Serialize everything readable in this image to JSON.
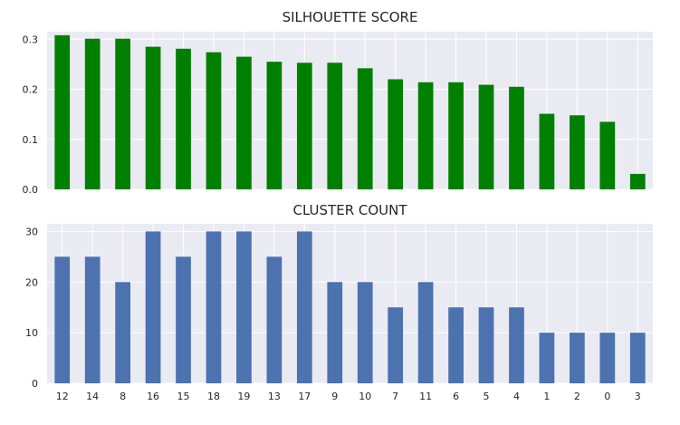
{
  "chart_data": [
    {
      "type": "bar",
      "title": "SILHOUETTE SCORE",
      "categories": [
        "12",
        "14",
        "8",
        "16",
        "15",
        "18",
        "19",
        "13",
        "17",
        "9",
        "10",
        "7",
        "11",
        "6",
        "5",
        "4",
        "1",
        "2",
        "0",
        "3"
      ],
      "values": [
        0.308,
        0.301,
        0.301,
        0.285,
        0.281,
        0.274,
        0.265,
        0.255,
        0.253,
        0.253,
        0.242,
        0.22,
        0.214,
        0.214,
        0.209,
        0.205,
        0.151,
        0.148,
        0.135,
        0.031
      ],
      "ylim": [
        0,
        0.315
      ],
      "yticks": [
        0.0,
        0.1,
        0.2,
        0.3
      ],
      "ytick_labels": [
        "0.0",
        "0.1",
        "0.2",
        "0.3"
      ],
      "xlabel": "",
      "ylabel": "",
      "color": "#008000",
      "show_xtick_labels": false,
      "grid": true
    },
    {
      "type": "bar",
      "title": "CLUSTER COUNT",
      "categories": [
        "12",
        "14",
        "8",
        "16",
        "15",
        "18",
        "19",
        "13",
        "17",
        "9",
        "10",
        "7",
        "11",
        "6",
        "5",
        "4",
        "1",
        "2",
        "0",
        "3"
      ],
      "values": [
        25,
        25,
        20,
        30,
        25,
        30,
        30,
        25,
        30,
        20,
        20,
        15,
        20,
        15,
        15,
        15,
        10,
        10,
        10,
        10
      ],
      "ylim": [
        0,
        31.5
      ],
      "yticks": [
        0,
        10,
        20,
        30
      ],
      "ytick_labels": [
        "0",
        "10",
        "20",
        "30"
      ],
      "xlabel": "",
      "ylabel": "",
      "color": "#4c72b0",
      "show_xtick_labels": true,
      "grid": true
    }
  ],
  "style": {
    "plot_background": "#eaeaf2",
    "grid_color": "#ffffff",
    "text_color": "#262626"
  }
}
